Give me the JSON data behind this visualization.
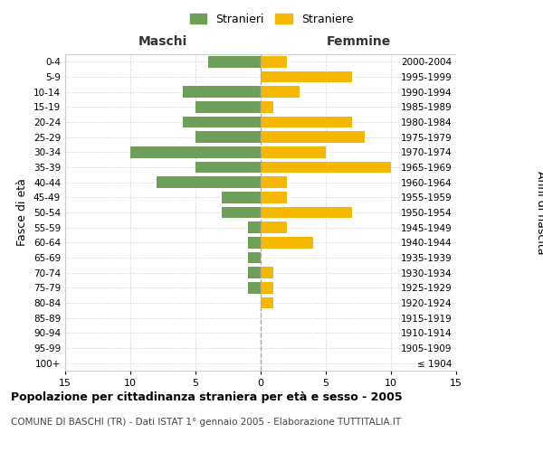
{
  "age_groups": [
    "100+",
    "95-99",
    "90-94",
    "85-89",
    "80-84",
    "75-79",
    "70-74",
    "65-69",
    "60-64",
    "55-59",
    "50-54",
    "45-49",
    "40-44",
    "35-39",
    "30-34",
    "25-29",
    "20-24",
    "15-19",
    "10-14",
    "5-9",
    "0-4"
  ],
  "birth_years": [
    "≤ 1904",
    "1905-1909",
    "1910-1914",
    "1915-1919",
    "1920-1924",
    "1925-1929",
    "1930-1934",
    "1935-1939",
    "1940-1944",
    "1945-1949",
    "1950-1954",
    "1955-1959",
    "1960-1964",
    "1965-1969",
    "1970-1974",
    "1975-1979",
    "1980-1984",
    "1985-1989",
    "1990-1994",
    "1995-1999",
    "2000-2004"
  ],
  "maschi": [
    0,
    0,
    0,
    0,
    0,
    1,
    1,
    1,
    1,
    1,
    3,
    3,
    8,
    5,
    10,
    5,
    6,
    5,
    6,
    0,
    4
  ],
  "femmine": [
    0,
    0,
    0,
    0,
    1,
    1,
    1,
    0,
    4,
    2,
    7,
    2,
    2,
    10,
    5,
    8,
    7,
    1,
    3,
    7,
    2
  ],
  "maschi_color": "#6d9e5a",
  "femmine_color": "#f5b800",
  "xlim": 15,
  "title": "Popolazione per cittadinanza straniera per età e sesso - 2005",
  "subtitle": "COMUNE DI BASCHI (TR) - Dati ISTAT 1° gennaio 2005 - Elaborazione TUTTITALIA.IT",
  "ylabel_left": "Fasce di età",
  "ylabel_right": "Anni di nascita",
  "maschi_label": "Stranieri",
  "femmine_label": "Straniere",
  "maschi_header": "Maschi",
  "femmine_header": "Femmine",
  "background_color": "#ffffff",
  "grid_color": "#cccccc",
  "bar_height": 0.75
}
